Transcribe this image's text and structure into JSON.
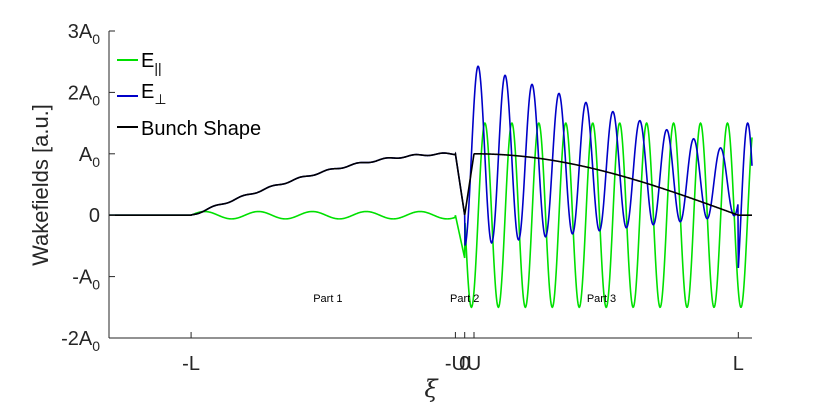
{
  "chart_data": {
    "type": "line",
    "title": "",
    "xlabel": "ξ",
    "ylabel": "Wakefields [a.u.]",
    "xlim": [
      -1.3,
      1.05
    ],
    "ylim": [
      -2,
      3
    ],
    "x_ticks": [
      {
        "value": -1.0,
        "label": "-L"
      },
      {
        "value": -0.034,
        "label": "-U"
      },
      {
        "value": 0.0,
        "label": "0"
      },
      {
        "value": 0.034,
        "label": "U"
      },
      {
        "value": 1.0,
        "label": "L"
      }
    ],
    "y_ticks": [
      {
        "value": -2,
        "label": "-2A",
        "sub": "0"
      },
      {
        "value": -1,
        "label": "-A",
        "sub": "0"
      },
      {
        "value": 0,
        "label": "0",
        "sub": ""
      },
      {
        "value": 1,
        "label": "A",
        "sub": "0"
      },
      {
        "value": 2,
        "label": "2A",
        "sub": "0"
      },
      {
        "value": 3,
        "label": "3A",
        "sub": "0"
      }
    ],
    "legend_position": "top-left",
    "grid": false,
    "series": [
      {
        "name": "E",
        "sub": "||",
        "color": "#00e000",
        "description_points": [
          [
            -1.3,
            0
          ],
          [
            -1.0,
            0
          ],
          [
            -0.034,
            0
          ],
          [
            0.0,
            -0.8
          ],
          [
            0.05,
            1.5
          ],
          [
            0.1,
            -1.5
          ],
          [
            1.0,
            1.5
          ],
          [
            1.0,
            -1.5
          ],
          [
            1.05,
            -1.2
          ]
        ]
      },
      {
        "name": "E",
        "sub": "⊥",
        "color": "#0000c8",
        "description_points": [
          [
            -1.3,
            0
          ],
          [
            -1.0,
            0
          ],
          [
            -0.034,
            1.0
          ],
          [
            0.0,
            0.0
          ],
          [
            0.05,
            2.5
          ],
          [
            0.1,
            -1.0
          ],
          [
            1.0,
            1.5
          ],
          [
            1.0,
            -1.5
          ],
          [
            1.05,
            -0.9
          ]
        ]
      },
      {
        "name": "Bunch Shape",
        "sub": "",
        "color": "#000000",
        "description_points": [
          [
            -1.3,
            0
          ],
          [
            -1.0,
            0
          ],
          [
            -0.5,
            0.75
          ],
          [
            -0.034,
            1.0
          ],
          [
            0.0,
            0.0
          ],
          [
            0.034,
            1.0
          ],
          [
            0.5,
            0.75
          ],
          [
            1.0,
            0
          ],
          [
            1.05,
            0
          ]
        ]
      }
    ],
    "annotations": [
      {
        "text": "Part 1",
        "x": -0.5,
        "y": -1.35
      },
      {
        "text": "Part 2",
        "x": 0.0,
        "y": -1.35
      },
      {
        "text": "Part 3",
        "x": 0.5,
        "y": -1.35
      }
    ]
  }
}
